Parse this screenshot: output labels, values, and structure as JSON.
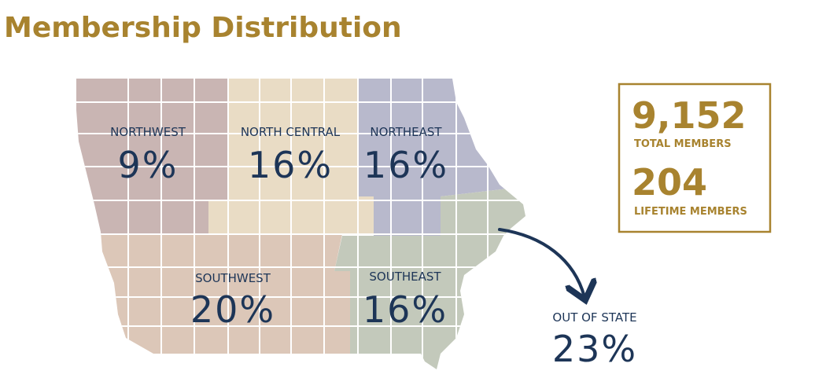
{
  "title": "Membership Distribution",
  "regions": [
    {
      "name": "NORTHWEST",
      "value": "9%"
    },
    {
      "name": "NORTH CENTRAL",
      "value": "16%"
    },
    {
      "name": "NORTHEAST",
      "value": "16%"
    },
    {
      "name": "SOUTHWEST",
      "value": "20%"
    },
    {
      "name": "SOUTHEAST",
      "value": "16%"
    }
  ],
  "out_of_state": {
    "name": "OUT OF STATE",
    "value": "23%"
  },
  "stats": [
    {
      "value": "9,152",
      "label": "TOTAL MEMBERS"
    },
    {
      "value": "204",
      "label": "LIFETIME MEMBERS"
    }
  ]
}
